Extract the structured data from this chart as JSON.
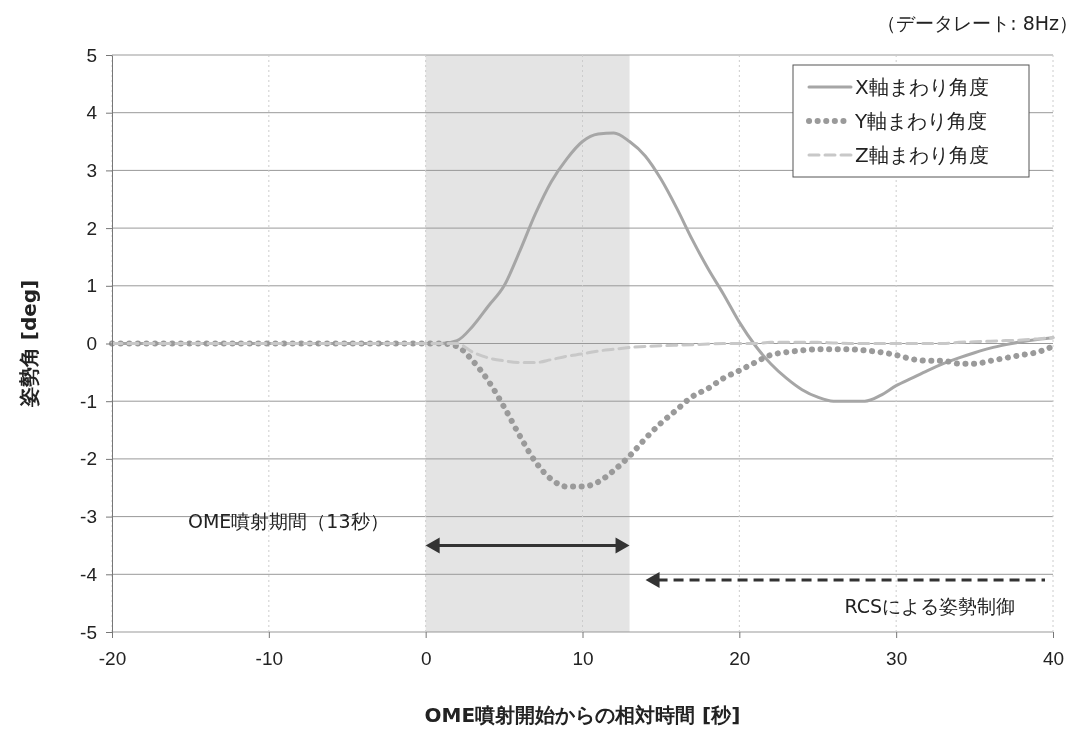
{
  "chart_data": {
    "type": "line",
    "xlabel": "OME噴射開始からの相対時間 [秒]",
    "ylabel": "姿勢角 [deg]",
    "annotations": [
      "（データレート: 8Hz）",
      "OME噴射期間（13秒）",
      "RCSによる姿勢制御"
    ],
    "xlim": [
      -20,
      40
    ],
    "xticks": [
      -20,
      -10,
      0,
      10,
      20,
      30,
      40
    ],
    "ylim": [
      -5,
      5
    ],
    "yticks": [
      -5,
      -4,
      -3,
      -2,
      -1,
      0,
      1,
      2,
      3,
      4,
      5
    ],
    "grid": true,
    "legend": "top right",
    "bands": [
      {
        "axis": "x",
        "from": 0,
        "to": 13,
        "color": "#e4e4e4"
      }
    ],
    "x": [
      -20,
      -15,
      -10,
      -5,
      0,
      1,
      2,
      3,
      4,
      5,
      6,
      7,
      8,
      9,
      10,
      11,
      12,
      13,
      14,
      15,
      16,
      17,
      18,
      19,
      20,
      21,
      22,
      23,
      24,
      25,
      26,
      27,
      28,
      29,
      30,
      31,
      32,
      33,
      34,
      35,
      36,
      37,
      38,
      39,
      40
    ],
    "series": [
      {
        "name": "X軸まわり角度",
        "color": "#a6a6a6",
        "line_style": "solid",
        "values": [
          0,
          0,
          0,
          0,
          0,
          0,
          0.05,
          0.3,
          0.65,
          1.0,
          1.6,
          2.25,
          2.8,
          3.2,
          3.5,
          3.63,
          3.65,
          3.5,
          3.25,
          2.85,
          2.35,
          1.8,
          1.3,
          0.85,
          0.37,
          -0.03,
          -0.35,
          -0.6,
          -0.8,
          -0.93,
          -1.0,
          -1.0,
          -1.0,
          -0.9,
          -0.73,
          -0.6,
          -0.47,
          -0.35,
          -0.25,
          -0.16,
          -0.08,
          -0.02,
          0.03,
          0.07,
          0.1
        ]
      },
      {
        "name": "Y軸まわり角度",
        "color": "#9a9a9a",
        "line_style": "dotted",
        "values": [
          0,
          0,
          0,
          0,
          0,
          0,
          -0.05,
          -0.3,
          -0.65,
          -1.1,
          -1.6,
          -2.05,
          -2.35,
          -2.48,
          -2.48,
          -2.4,
          -2.2,
          -1.95,
          -1.65,
          -1.38,
          -1.15,
          -0.92,
          -0.78,
          -0.6,
          -0.47,
          -0.33,
          -0.2,
          -0.15,
          -0.12,
          -0.1,
          -0.1,
          -0.1,
          -0.12,
          -0.15,
          -0.2,
          -0.27,
          -0.3,
          -0.3,
          -0.35,
          -0.35,
          -0.3,
          -0.25,
          -0.2,
          -0.15,
          -0.05
        ]
      },
      {
        "name": "Z軸まわり角度",
        "color": "#c8c8c8",
        "line_style": "dashed",
        "values": [
          0,
          0,
          0,
          0,
          0,
          0,
          0,
          -0.15,
          -0.25,
          -0.3,
          -0.33,
          -0.33,
          -0.28,
          -0.22,
          -0.18,
          -0.13,
          -0.1,
          -0.07,
          -0.05,
          -0.04,
          -0.03,
          -0.02,
          -0.01,
          0,
          0,
          0,
          0.02,
          0.02,
          0.02,
          0.02,
          0.01,
          0,
          0,
          0,
          0,
          0,
          0,
          0,
          0.02,
          0.03,
          0.04,
          0.05,
          0.06,
          0.08,
          0.1
        ]
      }
    ]
  }
}
